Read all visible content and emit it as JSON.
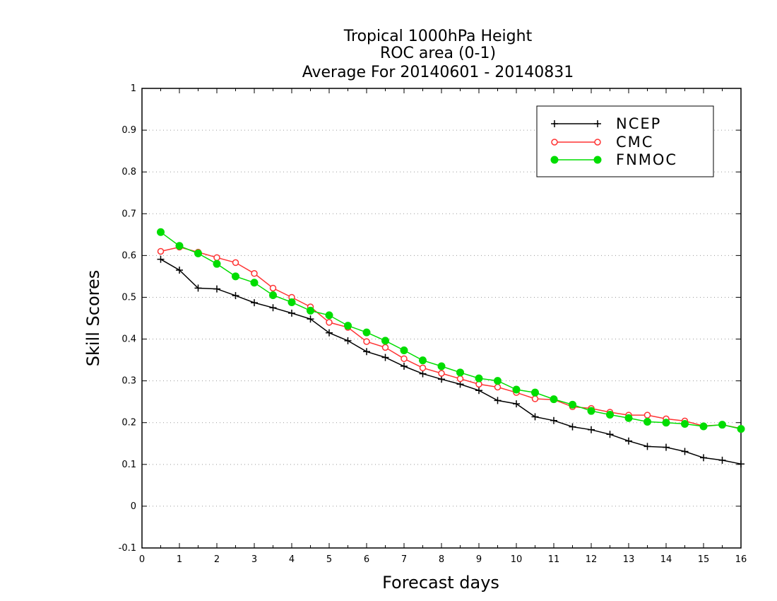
{
  "chart_data": {
    "type": "line",
    "title_lines": [
      "Tropical 1000hPa Height",
      "ROC area (0-1)",
      "Average For 20140601 - 20140831"
    ],
    "xlabel": "Forecast days",
    "ylabel": "Skill Scores",
    "xlim": [
      0,
      16
    ],
    "ylim": [
      -0.1,
      1
    ],
    "x_ticks": [
      "0",
      "1",
      "2",
      "3",
      "4",
      "5",
      "6",
      "7",
      "8",
      "9",
      "10",
      "11",
      "12",
      "13",
      "14",
      "15",
      "16"
    ],
    "y_ticks": [
      "-0.1",
      "0",
      "0.1",
      "0.2",
      "0.3",
      "0.4",
      "0.5",
      "0.6",
      "0.7",
      "0.8",
      "0.9",
      "1"
    ],
    "grid": "dotted horizontal",
    "legend_position": "top-right",
    "x": [
      0.5,
      1,
      1.5,
      2,
      2.5,
      3,
      3.5,
      4,
      4.5,
      5,
      5.5,
      6,
      6.5,
      7,
      7.5,
      8,
      8.5,
      9,
      9.5,
      10,
      10.5,
      11,
      11.5,
      12,
      12.5,
      13,
      13.5,
      14,
      14.5,
      15,
      15.5,
      16
    ],
    "series": [
      {
        "name": "NCEP",
        "color": "#000000",
        "marker": "plus",
        "values": [
          0.591,
          0.565,
          0.522,
          0.52,
          0.504,
          0.487,
          0.475,
          0.462,
          0.448,
          0.415,
          0.396,
          0.37,
          0.356,
          0.335,
          0.317,
          0.304,
          0.292,
          0.277,
          0.253,
          0.245,
          0.214,
          0.205,
          0.19,
          0.183,
          0.172,
          0.156,
          0.143,
          0.141,
          0.131,
          0.116,
          0.11,
          0.101
        ]
      },
      {
        "name": "CMC",
        "color": "#ff3333",
        "marker": "open-circle",
        "values": [
          0.61,
          0.62,
          0.608,
          0.595,
          0.583,
          0.557,
          0.522,
          0.5,
          0.477,
          0.44,
          0.428,
          0.394,
          0.38,
          0.353,
          0.331,
          0.318,
          0.305,
          0.292,
          0.285,
          0.272,
          0.257,
          0.255,
          0.238,
          0.234,
          0.225,
          0.218,
          0.218,
          0.209,
          0.204,
          0.192,
          0.195,
          0.186
        ]
      },
      {
        "name": "FNMOC",
        "color": "#00dd00",
        "marker": "filled-circle",
        "values": [
          0.656,
          0.623,
          0.605,
          0.58,
          0.55,
          0.535,
          0.505,
          0.488,
          0.468,
          0.457,
          0.432,
          0.416,
          0.396,
          0.373,
          0.349,
          0.335,
          0.32,
          0.306,
          0.3,
          0.279,
          0.272,
          0.256,
          0.243,
          0.228,
          0.219,
          0.211,
          0.202,
          0.2,
          0.197,
          0.191,
          0.195,
          0.185
        ]
      }
    ]
  }
}
